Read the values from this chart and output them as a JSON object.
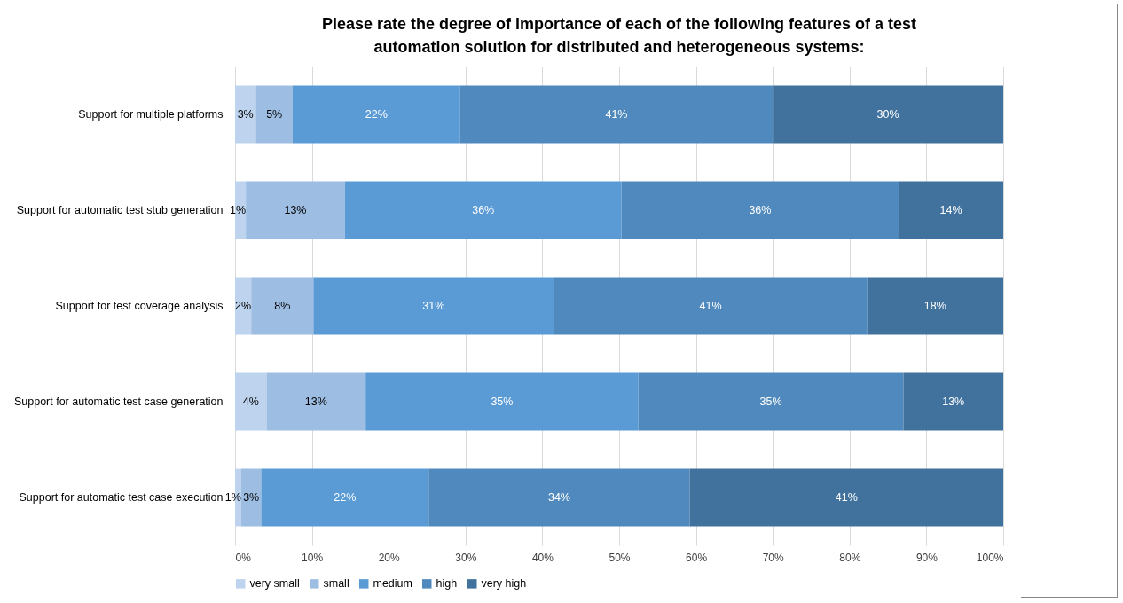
{
  "chart_data": {
    "type": "bar",
    "orientation": "horizontal",
    "stacked": true,
    "title": "Please rate the degree of importance of each of the following features of a test automation solution for distributed and heterogeneous systems:",
    "categories": [
      "Support for multiple platforms",
      "Support for automatic test stub generation",
      "Support for test coverage analysis",
      "Support for automatic test case generation",
      "Support for automatic test case execution"
    ],
    "series": [
      {
        "name": "very small",
        "color": "#bdd3ee",
        "values": [
          2.7,
          1.4,
          2.1,
          4.1,
          0.8
        ],
        "value_labels": [
          "3%",
          "1%",
          "2%",
          "4%",
          "1%"
        ]
      },
      {
        "name": "small",
        "color": "#9dbde3",
        "values": [
          4.8,
          12.9,
          8.1,
          12.9,
          2.6
        ],
        "value_labels": [
          "5%",
          "13%",
          "8%",
          "13%",
          "3%"
        ]
      },
      {
        "name": "medium",
        "color": "#5b9bd5",
        "values": [
          21.8,
          36,
          31.3,
          35.5,
          21.8
        ],
        "value_labels": [
          "22%",
          "36%",
          "31%",
          "35%",
          "22%"
        ]
      },
      {
        "name": "high",
        "color": "#4f89bd",
        "values": [
          40.7,
          36.1,
          40.8,
          34.5,
          34
        ],
        "value_labels": [
          "41%",
          "36%",
          "41%",
          "35%",
          "34%"
        ]
      },
      {
        "name": "very high",
        "color": "#41729e",
        "values": [
          30,
          13.6,
          17.7,
          13,
          40.8
        ],
        "value_labels": [
          "30%",
          "14%",
          "18%",
          "13%",
          "41%"
        ]
      }
    ],
    "xlim": [
      0,
      100
    ],
    "xticks": [
      {
        "value": 0,
        "label": "0%"
      },
      {
        "value": 10,
        "label": "10%"
      },
      {
        "value": 20,
        "label": "20%"
      },
      {
        "value": 30,
        "label": "30%"
      },
      {
        "value": 40,
        "label": "40%"
      },
      {
        "value": 50,
        "label": "50%"
      },
      {
        "value": 60,
        "label": "60%"
      },
      {
        "value": 70,
        "label": "70%"
      },
      {
        "value": 80,
        "label": "80%"
      },
      {
        "value": 90,
        "label": "90%"
      },
      {
        "value": 100,
        "label": "100%"
      }
    ],
    "grid": "x",
    "legend": "bottom"
  }
}
